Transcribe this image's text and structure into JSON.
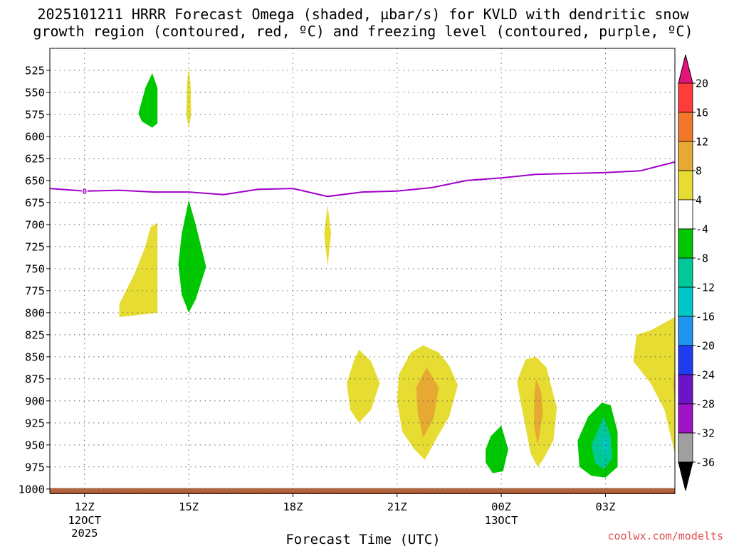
{
  "chart_data": {
    "type": "heatmap",
    "title_line1": "2025101211 HRRR Forecast Omega (shaded, µbar/s) for KVLD with dendritic snow",
    "title_line2": "growth region (contoured, red, ºC) and freezing level (contoured, purple, ºC)",
    "xlabel": "Forecast Time (UTC)",
    "credit": "coolwx.com/modelts",
    "x_range": [
      11,
      29
    ],
    "y_range": [
      1005,
      500
    ],
    "x_ticks": [
      {
        "value": 12,
        "label": "12Z",
        "sub1": "12OCT",
        "sub2": "2025"
      },
      {
        "value": 15,
        "label": "15Z",
        "sub1": "",
        "sub2": ""
      },
      {
        "value": 18,
        "label": "18Z",
        "sub1": "",
        "sub2": ""
      },
      {
        "value": 21,
        "label": "21Z",
        "sub1": "",
        "sub2": ""
      },
      {
        "value": 24,
        "label": "00Z",
        "sub1": "13OCT",
        "sub2": ""
      },
      {
        "value": 27,
        "label": "03Z",
        "sub1": "",
        "sub2": ""
      }
    ],
    "y_ticks": [
      525,
      550,
      575,
      600,
      625,
      650,
      675,
      700,
      725,
      750,
      775,
      800,
      825,
      850,
      875,
      900,
      925,
      950,
      975,
      1000
    ],
    "grid": true,
    "colorbar": {
      "labels": [
        "20",
        "16",
        "12",
        "8",
        "4",
        "-4",
        "-8",
        "-12",
        "-16",
        "-20",
        "-24",
        "-28",
        "-32",
        "-36"
      ],
      "colors": [
        "#ff3c3c",
        "#f07828",
        "#e6aa32",
        "#e6dc32",
        "#ffffff",
        "#00c800",
        "#00c896",
        "#00c8c8",
        "#1e96f0",
        "#1e3cf0",
        "#6e14c8",
        "#a014c8",
        "#a0a0a0"
      ],
      "over_color": "#e6147a",
      "under_color": "#000000"
    },
    "freezing_level": {
      "label": "0",
      "color": "#a000c8",
      "x": [
        11.0,
        12.0,
        13.0,
        14.0,
        15.0,
        16.0,
        17.0,
        18.0,
        19.0,
        20.0,
        21.0,
        22.0,
        23.0,
        24.0,
        25.0,
        26.0,
        27.0,
        28.0,
        29.0
      ],
      "p": [
        659,
        662,
        661,
        663,
        663,
        666,
        660,
        659,
        668,
        663,
        662,
        658,
        650,
        647,
        643,
        642,
        641,
        639,
        629
      ]
    },
    "omega_regions": [
      {
        "level": "-4",
        "color": "#00c800",
        "points": [
          [
            13.55,
            574
          ],
          [
            13.75,
            545
          ],
          [
            13.95,
            528
          ],
          [
            14.1,
            545
          ],
          [
            14.1,
            585
          ],
          [
            13.95,
            590
          ],
          [
            13.65,
            583
          ]
        ]
      },
      {
        "level": "4",
        "color": "#e6dc32",
        "points": [
          [
            14.93,
            575
          ],
          [
            14.95,
            540
          ],
          [
            15.0,
            522
          ],
          [
            15.05,
            540
          ],
          [
            15.07,
            575
          ],
          [
            15.0,
            590
          ]
        ]
      },
      {
        "level": "4",
        "color": "#e6dc32",
        "points": [
          [
            13.0,
            790
          ],
          [
            13.45,
            755
          ],
          [
            13.75,
            725
          ],
          [
            13.9,
            703
          ],
          [
            14.1,
            698
          ],
          [
            14.1,
            800
          ],
          [
            13.0,
            805
          ]
        ]
      },
      {
        "level": "-4",
        "color": "#00c800",
        "points": [
          [
            14.7,
            745
          ],
          [
            14.8,
            710
          ],
          [
            15.0,
            672
          ],
          [
            15.2,
            700
          ],
          [
            15.5,
            748
          ],
          [
            15.2,
            785
          ],
          [
            15.0,
            800
          ],
          [
            14.8,
            780
          ]
        ]
      },
      {
        "level": "4",
        "color": "#e6dc32",
        "points": [
          [
            18.9,
            710
          ],
          [
            19.0,
            678
          ],
          [
            19.1,
            710
          ],
          [
            19.0,
            747
          ]
        ]
      },
      {
        "level": "4",
        "color": "#e6dc32",
        "points": [
          [
            19.55,
            880
          ],
          [
            19.75,
            855
          ],
          [
            19.9,
            842
          ],
          [
            20.25,
            855
          ],
          [
            20.5,
            880
          ],
          [
            20.25,
            910
          ],
          [
            19.9,
            925
          ],
          [
            19.65,
            910
          ]
        ]
      },
      {
        "level": "4",
        "color": "#e6dc32",
        "points": [
          [
            21.05,
            870
          ],
          [
            21.4,
            845
          ],
          [
            21.75,
            837
          ],
          [
            22.2,
            845
          ],
          [
            22.5,
            860
          ],
          [
            22.75,
            882
          ],
          [
            22.5,
            918
          ],
          [
            22.1,
            945
          ],
          [
            21.8,
            967
          ],
          [
            21.5,
            955
          ],
          [
            21.15,
            935
          ],
          [
            21.0,
            900
          ]
        ]
      },
      {
        "level": "8",
        "color": "#e6aa32",
        "points": [
          [
            21.55,
            885
          ],
          [
            21.85,
            862
          ],
          [
            22.2,
            885
          ],
          [
            22.05,
            920
          ],
          [
            21.75,
            942
          ],
          [
            21.6,
            915
          ]
        ]
      },
      {
        "level": "4",
        "color": "#e6dc32",
        "points": [
          [
            24.45,
            878
          ],
          [
            24.7,
            853
          ],
          [
            25.0,
            850
          ],
          [
            25.3,
            862
          ],
          [
            25.6,
            908
          ],
          [
            25.5,
            945
          ],
          [
            25.2,
            967
          ],
          [
            25.05,
            975
          ],
          [
            24.85,
            960
          ],
          [
            24.65,
            920
          ]
        ]
      },
      {
        "level": "8",
        "color": "#e6aa32",
        "points": [
          [
            24.95,
            895
          ],
          [
            25.0,
            875
          ],
          [
            25.15,
            890
          ],
          [
            25.2,
            915
          ],
          [
            25.05,
            950
          ],
          [
            24.95,
            930
          ]
        ]
      },
      {
        "level": "-4",
        "color": "#00c800",
        "points": [
          [
            23.55,
            955
          ],
          [
            23.7,
            940
          ],
          [
            24.0,
            928
          ],
          [
            24.2,
            955
          ],
          [
            24.05,
            980
          ],
          [
            23.75,
            982
          ],
          [
            23.55,
            970
          ]
        ]
      },
      {
        "level": "-4",
        "color": "#00c800",
        "points": [
          [
            26.2,
            945
          ],
          [
            26.5,
            918
          ],
          [
            26.9,
            902
          ],
          [
            27.15,
            905
          ],
          [
            27.35,
            935
          ],
          [
            27.35,
            975
          ],
          [
            27.0,
            987
          ],
          [
            26.6,
            985
          ],
          [
            26.25,
            975
          ]
        ]
      },
      {
        "level": "-8",
        "color": "#00c896",
        "points": [
          [
            26.6,
            950
          ],
          [
            26.95,
            918
          ],
          [
            27.15,
            940
          ],
          [
            27.2,
            965
          ],
          [
            26.95,
            978
          ],
          [
            26.7,
            970
          ]
        ]
      },
      {
        "level": "-12",
        "color": "#00c8c8",
        "points": [
          [
            26.92,
            950
          ],
          [
            27.0,
            935
          ],
          [
            27.08,
            952
          ],
          [
            27.0,
            965
          ]
        ]
      },
      {
        "level": "4",
        "color": "#e6dc32",
        "points": [
          [
            27.9,
            825
          ],
          [
            28.3,
            820
          ],
          [
            29.0,
            805
          ],
          [
            29.0,
            960
          ],
          [
            28.7,
            910
          ],
          [
            28.3,
            880
          ],
          [
            27.8,
            855
          ]
        ]
      },
      {
        "level": "8",
        "color": "#e6aa32",
        "points": [
          [
            28.95,
            880
          ],
          [
            29.0,
            862
          ],
          [
            29.0,
            900
          ]
        ]
      }
    ],
    "ground": {
      "color": "#b4643c",
      "p_top": 999
    }
  }
}
